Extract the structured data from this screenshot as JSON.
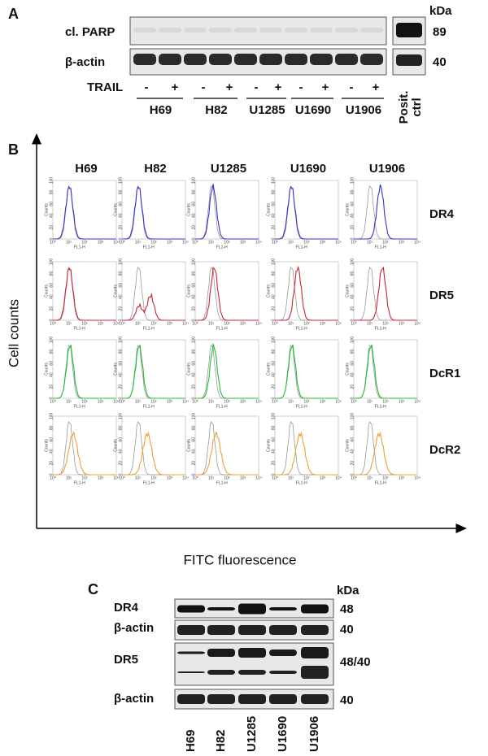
{
  "panel_a": {
    "label": "A",
    "kda": "kDa",
    "rows": [
      {
        "name": "cl. PARP",
        "kda": "89"
      },
      {
        "name": "β-actin",
        "kda": "40"
      }
    ],
    "treatment": "TRAIL",
    "signs": [
      "-",
      "+"
    ],
    "cell_lines": [
      "H69",
      "H82",
      "U1285",
      "U1690",
      "U1906"
    ],
    "control": [
      "Posit.",
      "ctrl"
    ]
  },
  "panel_b": {
    "label": "B",
    "y_axis": "Cell counts",
    "x_axis": "FITC fluorescence",
    "columns": [
      "H69",
      "H82",
      "U1285",
      "U1690",
      "U1906"
    ],
    "rows": [
      "DR4",
      "DR5",
      "DcR1",
      "DcR2"
    ],
    "histogram": {
      "y_title": "Counts",
      "x_title": "FL1-H",
      "x_ticks": [
        "10⁰",
        "10¹",
        "10²",
        "10³",
        "10⁴"
      ],
      "y_ticks": [
        "0",
        "20",
        "40",
        "60",
        "80",
        "100"
      ]
    }
  },
  "panel_c": {
    "label": "C",
    "kda": "kDa",
    "rows": [
      {
        "name": "DR4",
        "kda": "48"
      },
      {
        "name": "β-actin",
        "kda": "40"
      },
      {
        "name": "DR5",
        "kda": "48/40"
      },
      {
        "name": "β-actin",
        "kda": "40"
      }
    ],
    "cell_lines": [
      "H69",
      "H82",
      "U1285",
      "U1690",
      "U1906"
    ]
  }
}
